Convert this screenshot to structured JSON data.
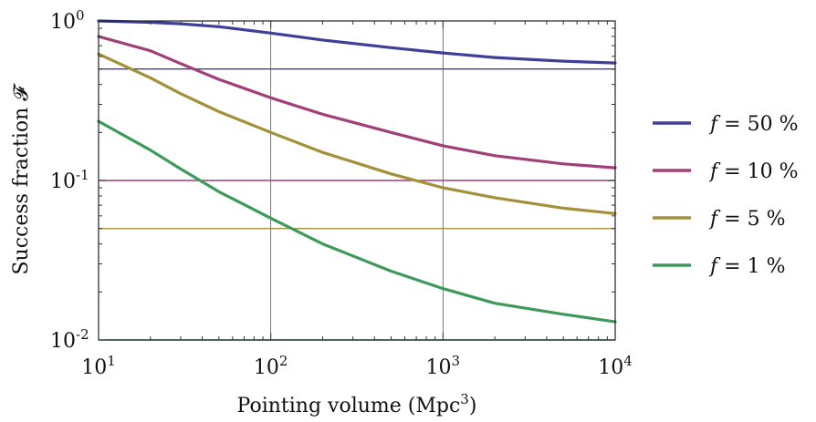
{
  "chart_data": {
    "type": "line",
    "xlabel": "Pointing volume (Mpc",
    "xlabel_sup": "3",
    "xlabel_end": ")",
    "ylabel": "Success fraction 𝓕",
    "x_scale": "log",
    "y_scale": "log",
    "xlim": [
      10,
      10000
    ],
    "ylim": [
      0.01,
      1
    ],
    "x_ticks": [
      {
        "value": 10,
        "base": "10",
        "exp": "1"
      },
      {
        "value": 100,
        "base": "10",
        "exp": "2"
      },
      {
        "value": 1000,
        "base": "10",
        "exp": "3"
      },
      {
        "value": 10000,
        "base": "10",
        "exp": "4"
      }
    ],
    "y_ticks": [
      {
        "value": 1,
        "base": "10",
        "exp": "0"
      },
      {
        "value": 0.1,
        "base": "10",
        "exp": "-1"
      },
      {
        "value": 0.01,
        "base": "10",
        "exp": "-2"
      }
    ],
    "vertical_grid_at": [
      100,
      1000
    ],
    "legend_position": "right",
    "series": [
      {
        "name": "f = 50 %",
        "name_var": "f",
        "name_rest": " = 50 %",
        "color": "#3f3f9a",
        "points": [
          [
            10,
            1.0
          ],
          [
            20,
            0.98
          ],
          [
            30,
            0.96
          ],
          [
            50,
            0.92
          ],
          [
            100,
            0.84
          ],
          [
            200,
            0.76
          ],
          [
            500,
            0.68
          ],
          [
            1000,
            0.63
          ],
          [
            2000,
            0.59
          ],
          [
            5000,
            0.56
          ],
          [
            10000,
            0.545
          ]
        ],
        "threshold": 0.5
      },
      {
        "name": "f = 10 %",
        "name_var": "f",
        "name_rest": " = 10 %",
        "color": "#a13f78",
        "points": [
          [
            10,
            0.8
          ],
          [
            20,
            0.65
          ],
          [
            30,
            0.54
          ],
          [
            50,
            0.43
          ],
          [
            100,
            0.33
          ],
          [
            200,
            0.26
          ],
          [
            500,
            0.2
          ],
          [
            1000,
            0.165
          ],
          [
            2000,
            0.143
          ],
          [
            5000,
            0.127
          ],
          [
            10000,
            0.12
          ]
        ],
        "threshold": 0.1
      },
      {
        "name": "f = 5 %",
        "name_var": "f",
        "name_rest": " = 5 %",
        "color": "#a39038",
        "points": [
          [
            10,
            0.62
          ],
          [
            20,
            0.44
          ],
          [
            30,
            0.35
          ],
          [
            50,
            0.27
          ],
          [
            100,
            0.2
          ],
          [
            200,
            0.15
          ],
          [
            500,
            0.11
          ],
          [
            1000,
            0.09
          ],
          [
            2000,
            0.078
          ],
          [
            5000,
            0.067
          ],
          [
            10000,
            0.062
          ]
        ],
        "threshold": 0.05
      },
      {
        "name": "f = 1 %",
        "name_var": "f",
        "name_rest": " = 1 %",
        "color": "#3d9a5a",
        "points": [
          [
            10,
            0.235
          ],
          [
            20,
            0.155
          ],
          [
            30,
            0.118
          ],
          [
            50,
            0.085
          ],
          [
            100,
            0.058
          ],
          [
            200,
            0.04
          ],
          [
            500,
            0.027
          ],
          [
            1000,
            0.021
          ],
          [
            2000,
            0.017
          ],
          [
            5000,
            0.0145
          ],
          [
            10000,
            0.013
          ]
        ],
        "threshold": 0.01
      }
    ]
  }
}
